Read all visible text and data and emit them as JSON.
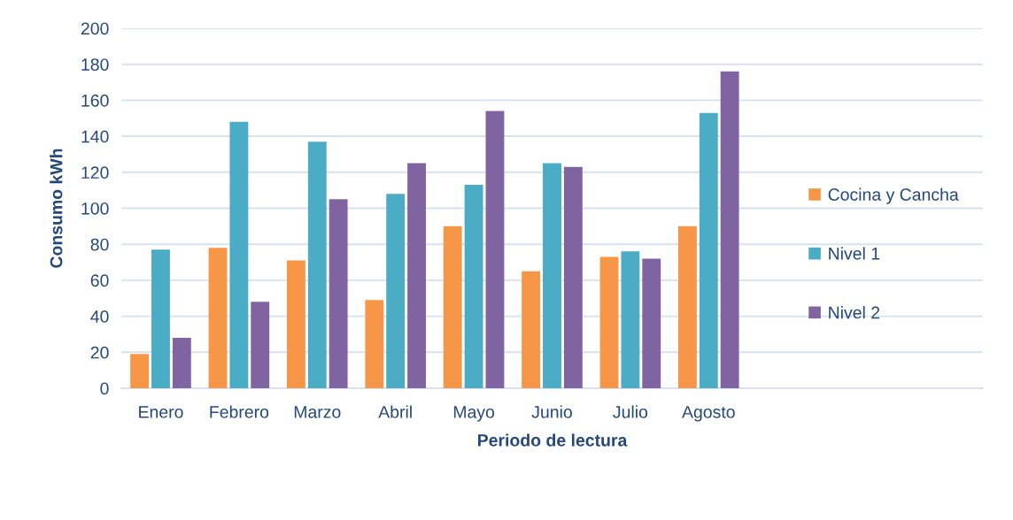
{
  "chart_data": {
    "type": "bar",
    "xlabel": "Periodo de lectura",
    "ylabel": "Consumo kWh",
    "categories": [
      "Enero",
      "Febrero",
      "Marzo",
      "Abril",
      "Mayo",
      "Junio",
      "Julio",
      "Agosto",
      null,
      null,
      null
    ],
    "series": [
      {
        "name": "Cocina y Cancha",
        "color": "#f79646",
        "values": [
          19,
          78,
          71,
          49,
          90,
          65,
          73,
          90,
          null,
          null,
          null
        ]
      },
      {
        "name": "Nivel 1",
        "color": "#4bacc6",
        "values": [
          77,
          148,
          137,
          108,
          113,
          125,
          76,
          153,
          null,
          null,
          null
        ]
      },
      {
        "name": "Nivel 2",
        "color": "#8064a2",
        "values": [
          28,
          48,
          105,
          125,
          154,
          123,
          72,
          176,
          null,
          null,
          null
        ]
      }
    ],
    "ylim": [
      0,
      200
    ],
    "yticks": [
      0,
      20,
      40,
      60,
      80,
      100,
      120,
      140,
      160,
      180,
      200
    ],
    "grid": "y",
    "legend": "right"
  }
}
